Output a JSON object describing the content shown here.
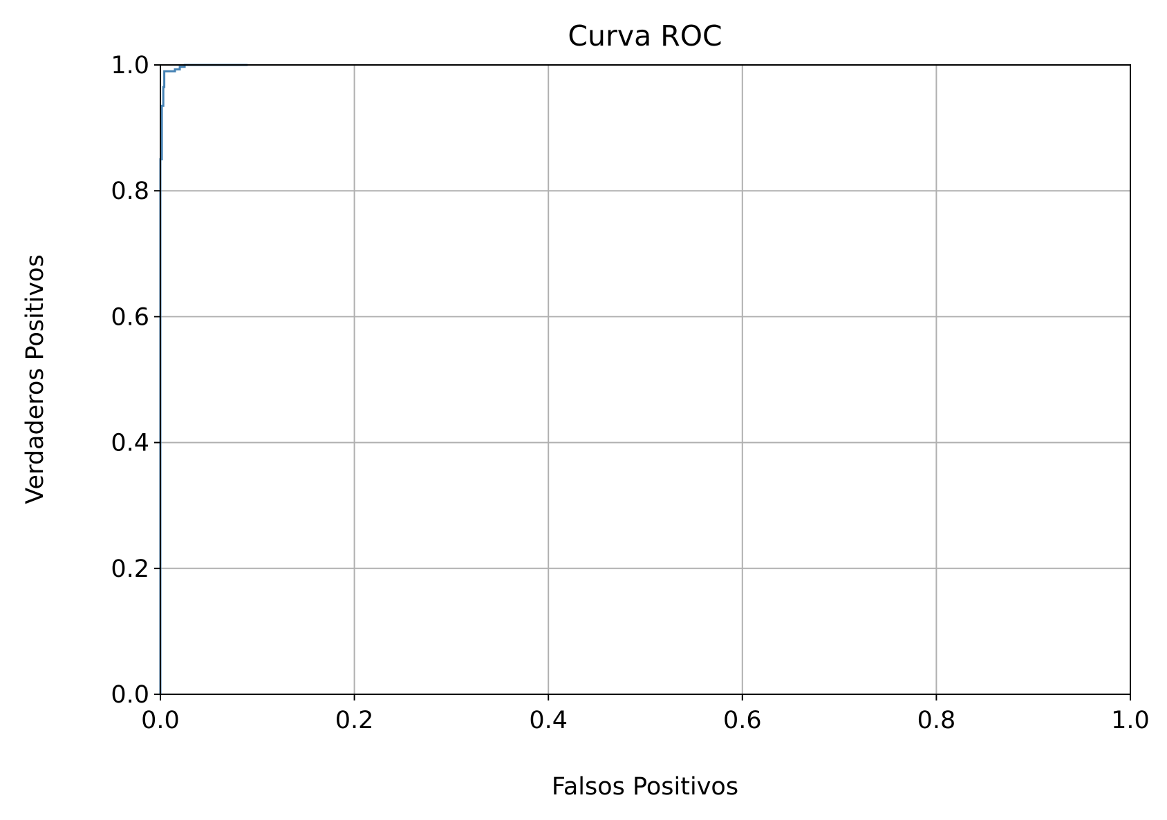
{
  "chart_data": {
    "type": "line",
    "title": "Curva ROC",
    "xlabel": "Falsos Positivos",
    "ylabel": "Verdaderos Positivos",
    "xlim": [
      0.0,
      1.0
    ],
    "ylim": [
      0.0,
      1.0
    ],
    "xticks": [
      "0.0",
      "0.2",
      "0.4",
      "0.6",
      "0.8",
      "1.0"
    ],
    "yticks": [
      "0.0",
      "0.2",
      "0.4",
      "0.6",
      "0.8",
      "1.0"
    ],
    "grid": true,
    "legend": null,
    "colors": {
      "line": "#4682b4",
      "grid": "#b0b0b0",
      "axes": "#000000"
    },
    "series": [
      {
        "x": [
          0.0,
          0.0,
          0.0015,
          0.0015,
          0.003,
          0.003,
          0.004,
          0.004,
          0.004,
          0.004,
          0.01,
          0.01,
          0.015,
          0.015,
          0.02,
          0.02,
          0.025,
          0.025,
          0.09
        ],
        "y": [
          0.0,
          0.85,
          0.85,
          0.935,
          0.935,
          0.965,
          0.965,
          0.98,
          0.98,
          0.99,
          0.99,
          0.99,
          0.99,
          0.993,
          0.993,
          0.997,
          0.997,
          1.0,
          1.0
        ]
      }
    ]
  }
}
